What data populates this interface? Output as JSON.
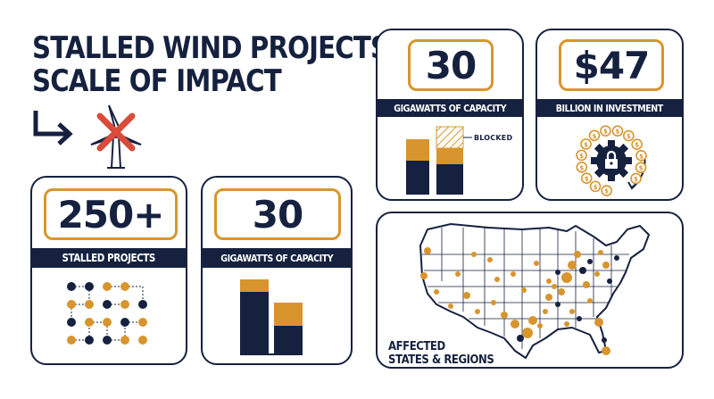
{
  "title": {
    "line1": "STALLED WIND PROJECTS:",
    "line2": "SCALE OF IMPACT"
  },
  "colors": {
    "navy": "#15213f",
    "gold": "#d8952d",
    "red": "#d94b3a"
  },
  "icons": [
    "arrow-down-right-icon",
    "crossed-wind-turbine-icon",
    "dot-network-icon",
    "lock-gear-icon",
    "dollar-coin-icon"
  ],
  "cards": {
    "stalled": {
      "number": "250+",
      "label": "STALLED PROJECTS"
    },
    "capacity_bottom": {
      "number": "30",
      "label": "GIGAWATTS OF CAPACITY"
    },
    "capacity_top": {
      "number": "30",
      "label": "GIGAWATTS OF CAPACITY",
      "blocked_label": "BLOCKED"
    },
    "investment": {
      "number": "$47",
      "label": "BILLION IN INVESTMENT",
      "coin_symbol": "$"
    },
    "map": {
      "caption_line1": "AFFECTED",
      "caption_line2": "STATES & REGIONS"
    }
  }
}
